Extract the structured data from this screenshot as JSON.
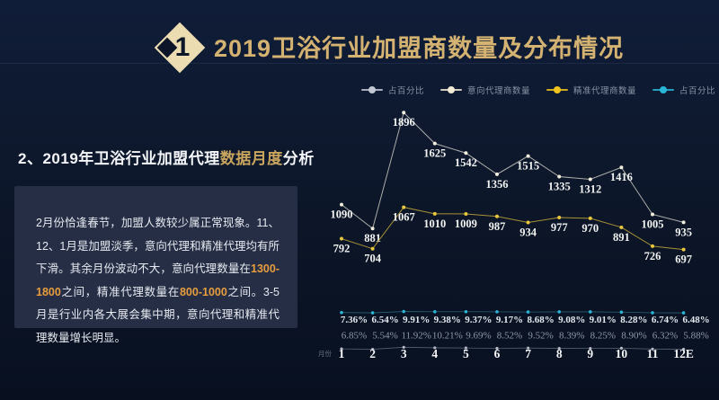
{
  "header": {
    "badge_number": "1",
    "title": "2019卫浴行业加盟商数量及分布情况"
  },
  "section": {
    "subtitle_prefix": "2、2019年卫浴行业加盟代理",
    "subtitle_highlight": "数据月度",
    "subtitle_suffix": "分析"
  },
  "insight_panel": {
    "runs": [
      {
        "t": "2月份恰逢春节，加盟人数较少属正常现象。11、12、1月是加盟淡季，意向代理和精准代理均有所下滑。其余月份波动不大，意向代理数量在",
        "hl": false
      },
      {
        "t": "1300-1800",
        "hl": true
      },
      {
        "t": "之间，精准代理数量在",
        "hl": false
      },
      {
        "t": "800-1000",
        "hl": true
      },
      {
        "t": "之间。3-5月是行业内各大展会集中期，意向代理和精准代理数量增长明显。",
        "hl": false
      }
    ]
  },
  "chart_data": {
    "type": "line",
    "x_axis_label": "月份",
    "categories": [
      "1",
      "2",
      "3",
      "4",
      "5",
      "6",
      "7",
      "8",
      "9",
      "10",
      "11",
      "12E"
    ],
    "series": [
      {
        "name": "意向代理商数量",
        "color": "#f2eedd",
        "values": [
          1090,
          881,
          1896,
          1625,
          1542,
          1356,
          1515,
          1335,
          1312,
          1416,
          1005,
          935
        ]
      },
      {
        "name": "精准代理商数量",
        "color": "#eac83e",
        "values": [
          792,
          704,
          1067,
          1010,
          1009,
          987,
          934,
          977,
          970,
          891,
          726,
          697
        ]
      }
    ],
    "percent_series": [
      {
        "name": "占百分比",
        "color": "#29b6d8",
        "values": [
          7.36,
          6.54,
          9.91,
          9.38,
          9.37,
          9.17,
          8.68,
          9.08,
          9.01,
          8.28,
          6.74,
          6.48
        ]
      },
      {
        "name": "占百分比",
        "color": "#9aa4b4",
        "values": [
          6.85,
          5.54,
          11.92,
          10.21,
          9.69,
          8.52,
          9.52,
          8.39,
          8.25,
          8.9,
          6.32,
          5.88
        ]
      }
    ],
    "legend": [
      {
        "label": "占百分比",
        "color": "#c2c8d4"
      },
      {
        "label": "意向代理商数量",
        "color": "#f2ecd6"
      },
      {
        "label": "精准代理商数量",
        "color": "#f0c41c"
      },
      {
        "label": "占百分比",
        "color": "#29b6d8"
      }
    ],
    "legend_position": "top",
    "grid": false,
    "y_range_hint": [
      600,
      2000
    ]
  }
}
